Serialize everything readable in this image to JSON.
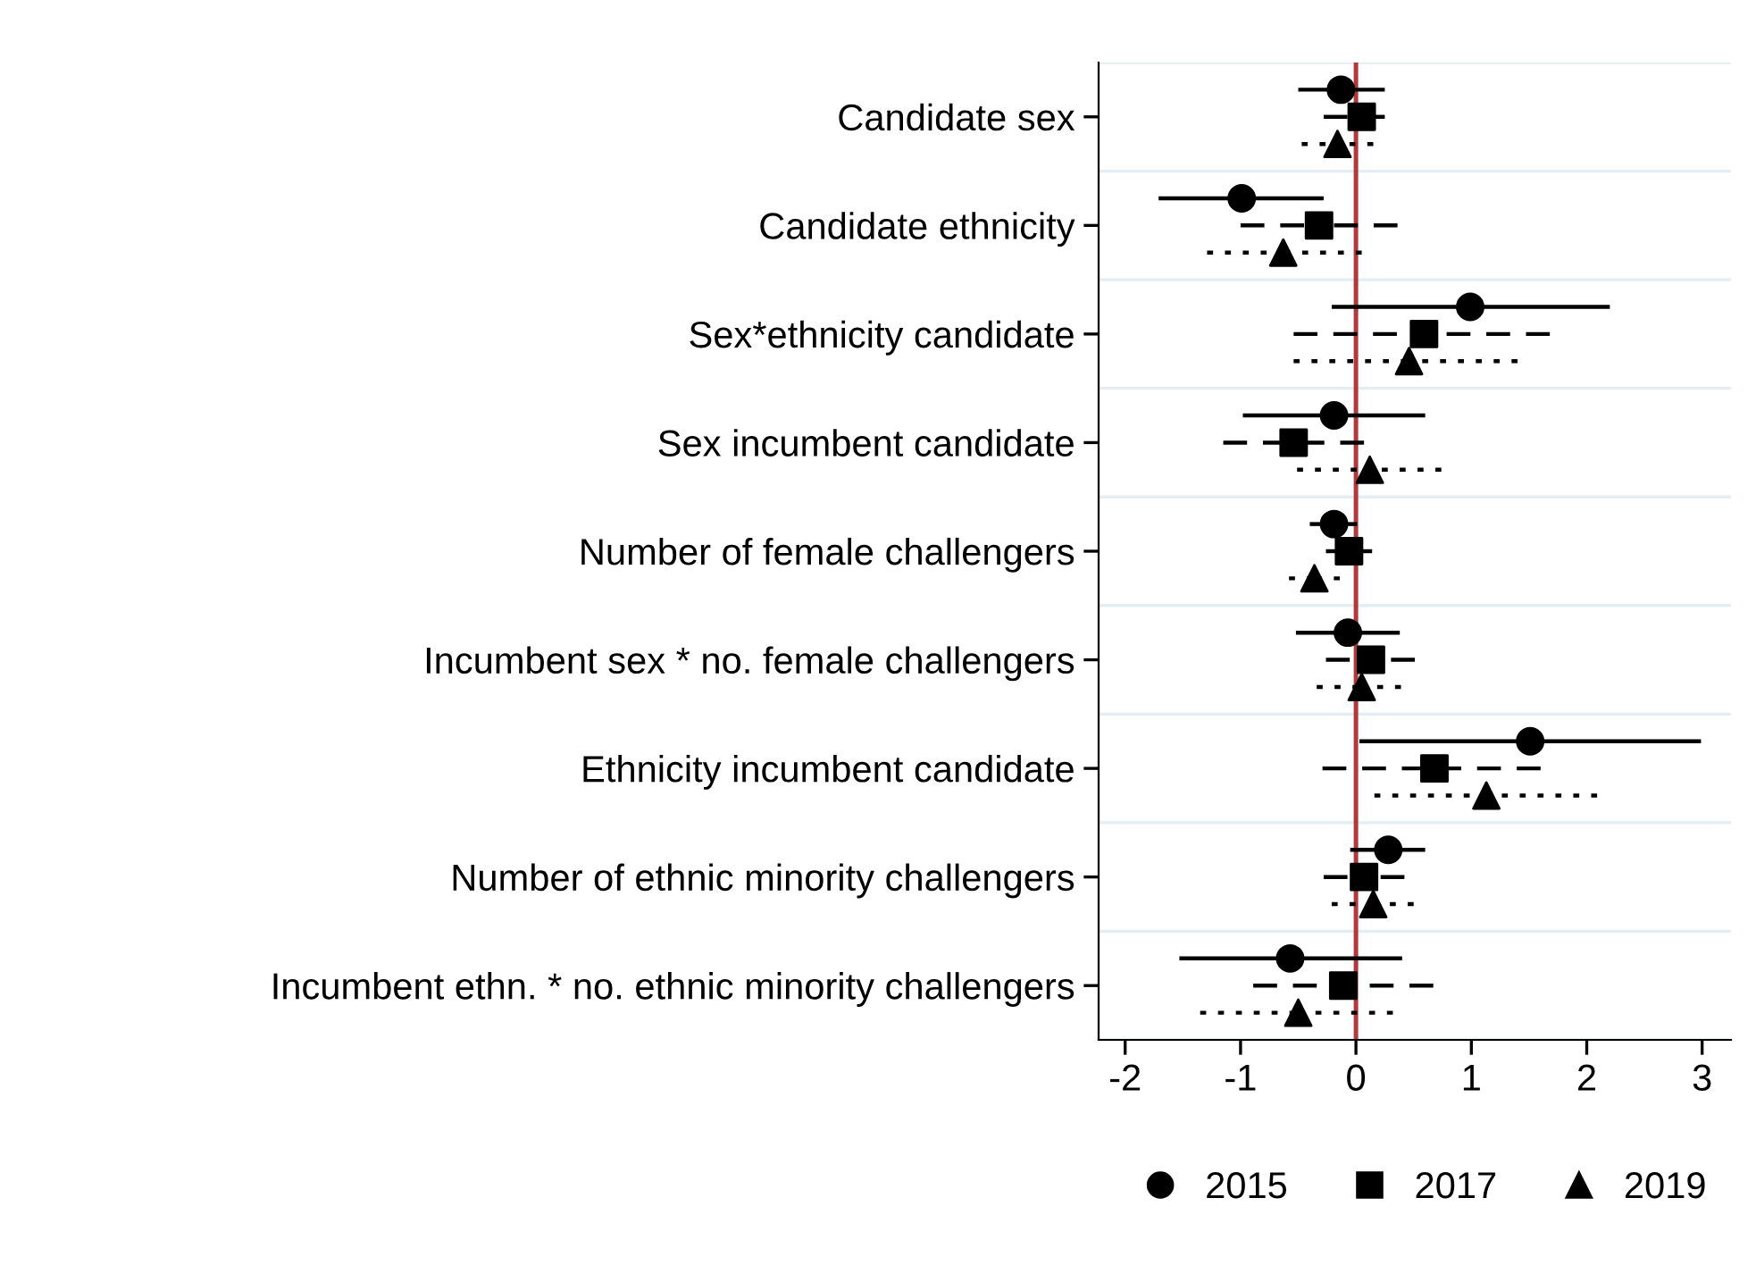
{
  "chart_data": {
    "type": "scatter",
    "orientation": "horizontal",
    "categories": [
      "Candidate sex",
      "Candidate ethnicity",
      "Sex*ethnicity candidate",
      "Sex incumbent candidate",
      "Number of female challengers",
      "Incumbent sex * no. female challengers",
      "Ethnicity incumbent candidate",
      "Number of ethnic minority challengers",
      "Incumbent ethn. * no. ethnic minority challengers"
    ],
    "series": [
      {
        "name": "2015",
        "color": "#000000",
        "marker": "circle",
        "line_style": "solid",
        "values": [
          -0.13,
          -0.99,
          0.99,
          -0.19,
          -0.19,
          -0.07,
          1.51,
          0.28,
          -0.57
        ],
        "errors": [
          [
            -0.5,
            0.25
          ],
          [
            -1.71,
            -0.28
          ],
          [
            -0.21,
            2.2
          ],
          [
            -0.98,
            0.6
          ],
          [
            -0.4,
            0.01
          ],
          [
            -0.52,
            0.38
          ],
          [
            0.03,
            2.99
          ],
          [
            -0.05,
            0.6
          ],
          [
            -1.53,
            0.4
          ]
        ]
      },
      {
        "name": "2017",
        "color": "#000000",
        "marker": "square",
        "line_style": "dashed",
        "values": [
          0.05,
          -0.32,
          0.59,
          -0.54,
          -0.06,
          0.13,
          0.68,
          0.07,
          -0.11
        ],
        "errors": [
          [
            -0.28,
            0.25
          ],
          [
            -1.0,
            0.36
          ],
          [
            -0.54,
            1.68
          ],
          [
            -1.15,
            0.07
          ],
          [
            -0.26,
            0.14
          ],
          [
            -0.26,
            0.51
          ],
          [
            -0.29,
            1.6
          ],
          [
            -0.28,
            0.42
          ],
          [
            -0.89,
            0.67
          ]
        ]
      },
      {
        "name": "2019",
        "color": "#000000",
        "marker": "triangle",
        "line_style": "dotted",
        "values": [
          -0.16,
          -0.63,
          0.46,
          0.12,
          -0.36,
          0.05,
          1.13,
          0.15,
          -0.5
        ],
        "errors": [
          [
            -0.47,
            0.15
          ],
          [
            -1.29,
            0.05
          ],
          [
            -0.54,
            1.4
          ],
          [
            -0.51,
            0.74
          ],
          [
            -0.58,
            -0.14
          ],
          [
            -0.34,
            0.39
          ],
          [
            0.16,
            2.09
          ],
          [
            -0.21,
            0.5
          ],
          [
            -1.35,
            0.32
          ]
        ]
      }
    ],
    "xlim": [
      -2.23,
      3.25
    ],
    "xticks": [
      -2,
      -1,
      0,
      1,
      2,
      3
    ],
    "ref_lines": [
      {
        "axis": "x",
        "value": 0,
        "color": "#b03a3a"
      }
    ],
    "grid": "y",
    "legend": "bottom"
  }
}
